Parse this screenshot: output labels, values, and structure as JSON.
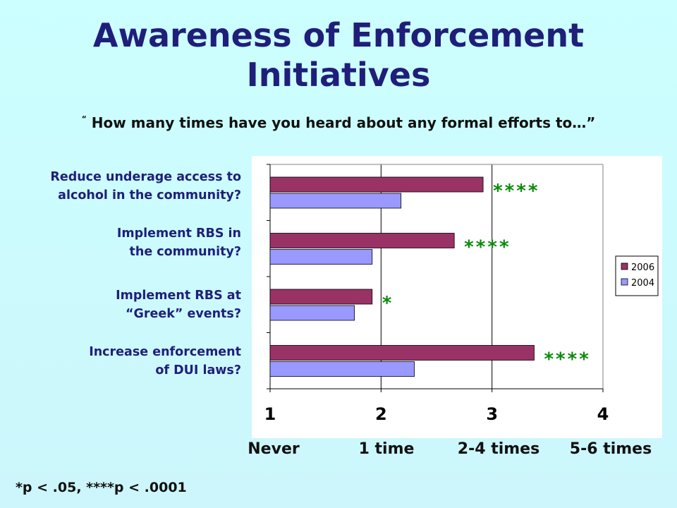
{
  "title": {
    "line1": "Awareness of Enforcement",
    "line2": "Initiatives"
  },
  "subtitle": {
    "open_quote": "“",
    "text": "How many times have you heard about any formal efforts to…”"
  },
  "footnote": "*p < .05, ****p < .0001",
  "chart_data": {
    "type": "bar",
    "orientation": "horizontal",
    "categories": [
      {
        "line1": "Reduce underage access to",
        "line2": "alcohol in the community?"
      },
      {
        "line1": "Implement RBS in",
        "line2": "the community?"
      },
      {
        "line1": "Implement RBS at",
        "line2": "“Greek” events?"
      },
      {
        "line1": "Increase enforcement",
        "line2": "of DUI laws?"
      }
    ],
    "series": [
      {
        "name": "2006",
        "color": "#993366",
        "values": [
          2.92,
          2.66,
          1.92,
          3.38
        ]
      },
      {
        "name": "2004",
        "color": "#9999ff",
        "values": [
          2.18,
          1.92,
          1.76,
          2.3
        ]
      }
    ],
    "significance": [
      "****",
      "****",
      "*",
      "****"
    ],
    "significance_color": "#0a8a0a",
    "xlim": [
      1,
      4
    ],
    "xticks": [
      "1",
      "2",
      "3",
      "4"
    ],
    "xtick_descriptions": [
      "Never",
      "1 time",
      "2-4 times",
      "5-6 times"
    ],
    "grid": "vertical",
    "legend_position": "right"
  }
}
